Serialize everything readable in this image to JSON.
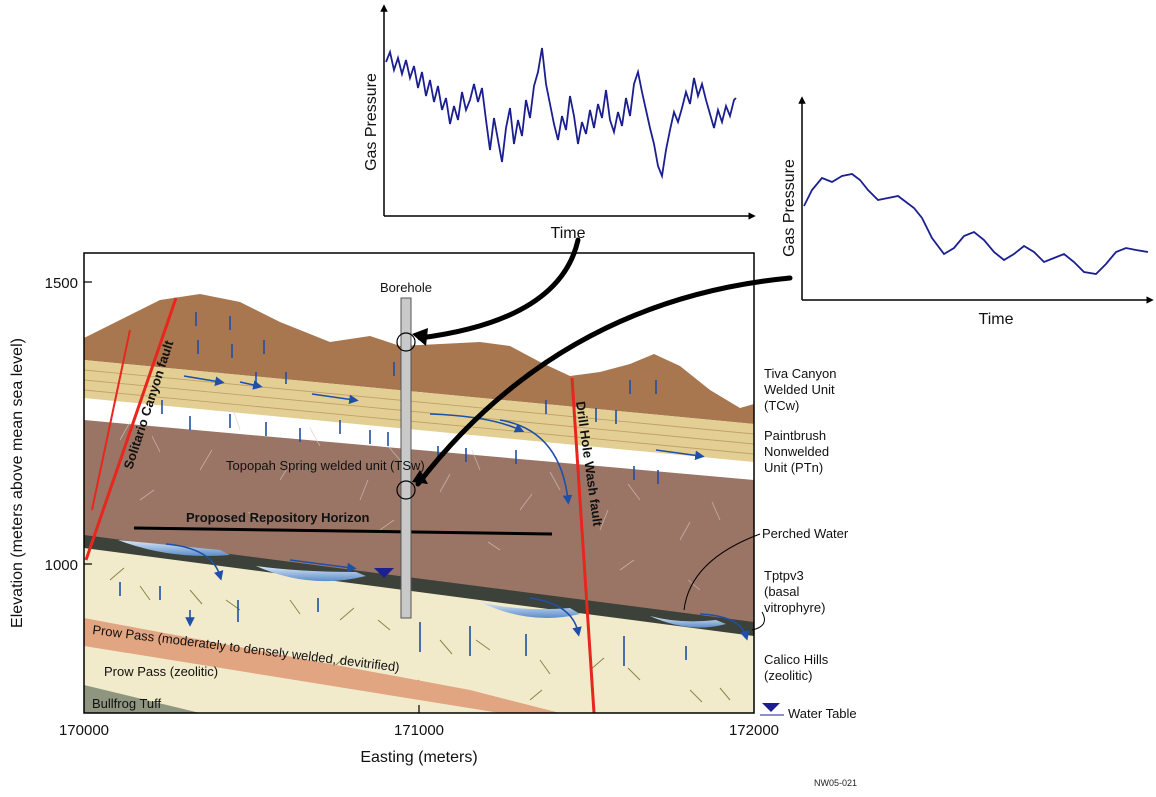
{
  "chart_top": {
    "y_label": "Gas Pressure",
    "x_label": "Time"
  },
  "chart_right": {
    "y_label": "Gas Pressure",
    "x_label": "Time"
  },
  "section": {
    "y_axis_label": "Elevation (meters above mean sea level)",
    "x_axis_label": "Easting (meters)",
    "y_ticks": [
      "1500",
      "1000"
    ],
    "x_ticks": [
      "170000",
      "171000",
      "172000"
    ],
    "borehole": "Borehole",
    "fault_left": "Solitario Canyon fault",
    "fault_right": "Drill Hole Wash fault",
    "tsw_label": "Topopah Spring welded unit (TSw)",
    "repository": "Proposed Repository Horizon",
    "prow_pass_welded": "Prow Pass (moderately to densely welded, devitrified)",
    "prow_pass_zeolitic": "Prow Pass (zeolitic)",
    "bullfrog": "Bullfrog Tuff"
  },
  "legend": {
    "tcw": [
      "Tiva Canyon",
      "Welded Unit",
      "(TCw)"
    ],
    "ptn": [
      "Paintbrush",
      "Nonwelded",
      "Unit (PTn)"
    ],
    "perched": "Perched Water",
    "tptpv3": [
      "Tptpv3",
      "(basal",
      "vitrophyre)"
    ],
    "calico": [
      "Calico Hills",
      "(zeolitic)"
    ],
    "water_table": "Water Table"
  },
  "figure_id": "NW05-021",
  "colors": {
    "tcw": "#a9774f",
    "ptn": "#e3cf94",
    "tsw": "#9a7565",
    "calico": "#f1ebcc",
    "prow_welded": "#e2a582",
    "bullfrog": "#8f9680",
    "vitrophyre": "#3c4239",
    "fault": "#e8261e",
    "arrow_blue": "#1f4fa8",
    "pressure_line": "#1b1f8f"
  }
}
